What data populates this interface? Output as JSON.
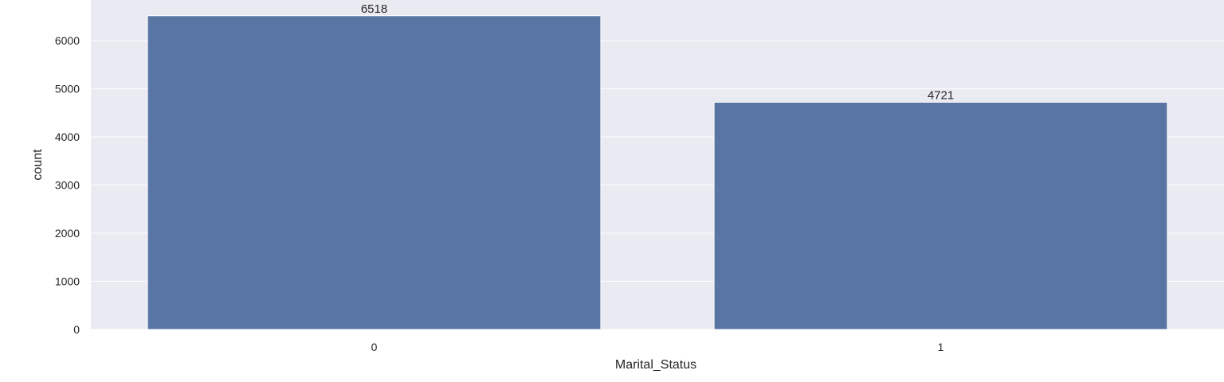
{
  "chart_data": {
    "type": "bar",
    "categories": [
      "0",
      "1"
    ],
    "values": [
      6518,
      4721
    ],
    "data_labels": [
      "6518",
      "4721"
    ],
    "xlabel": "Marital_Status",
    "ylabel": "count",
    "ylim": [
      0,
      6845
    ],
    "yticks": [
      0,
      1000,
      2000,
      3000,
      4000,
      5000,
      6000
    ],
    "grid": true,
    "legend": false
  },
  "colors": {
    "plot_background": "#eaeaf2",
    "bar": "#5975a4",
    "grid": "#ffffff",
    "text": "#262626"
  }
}
